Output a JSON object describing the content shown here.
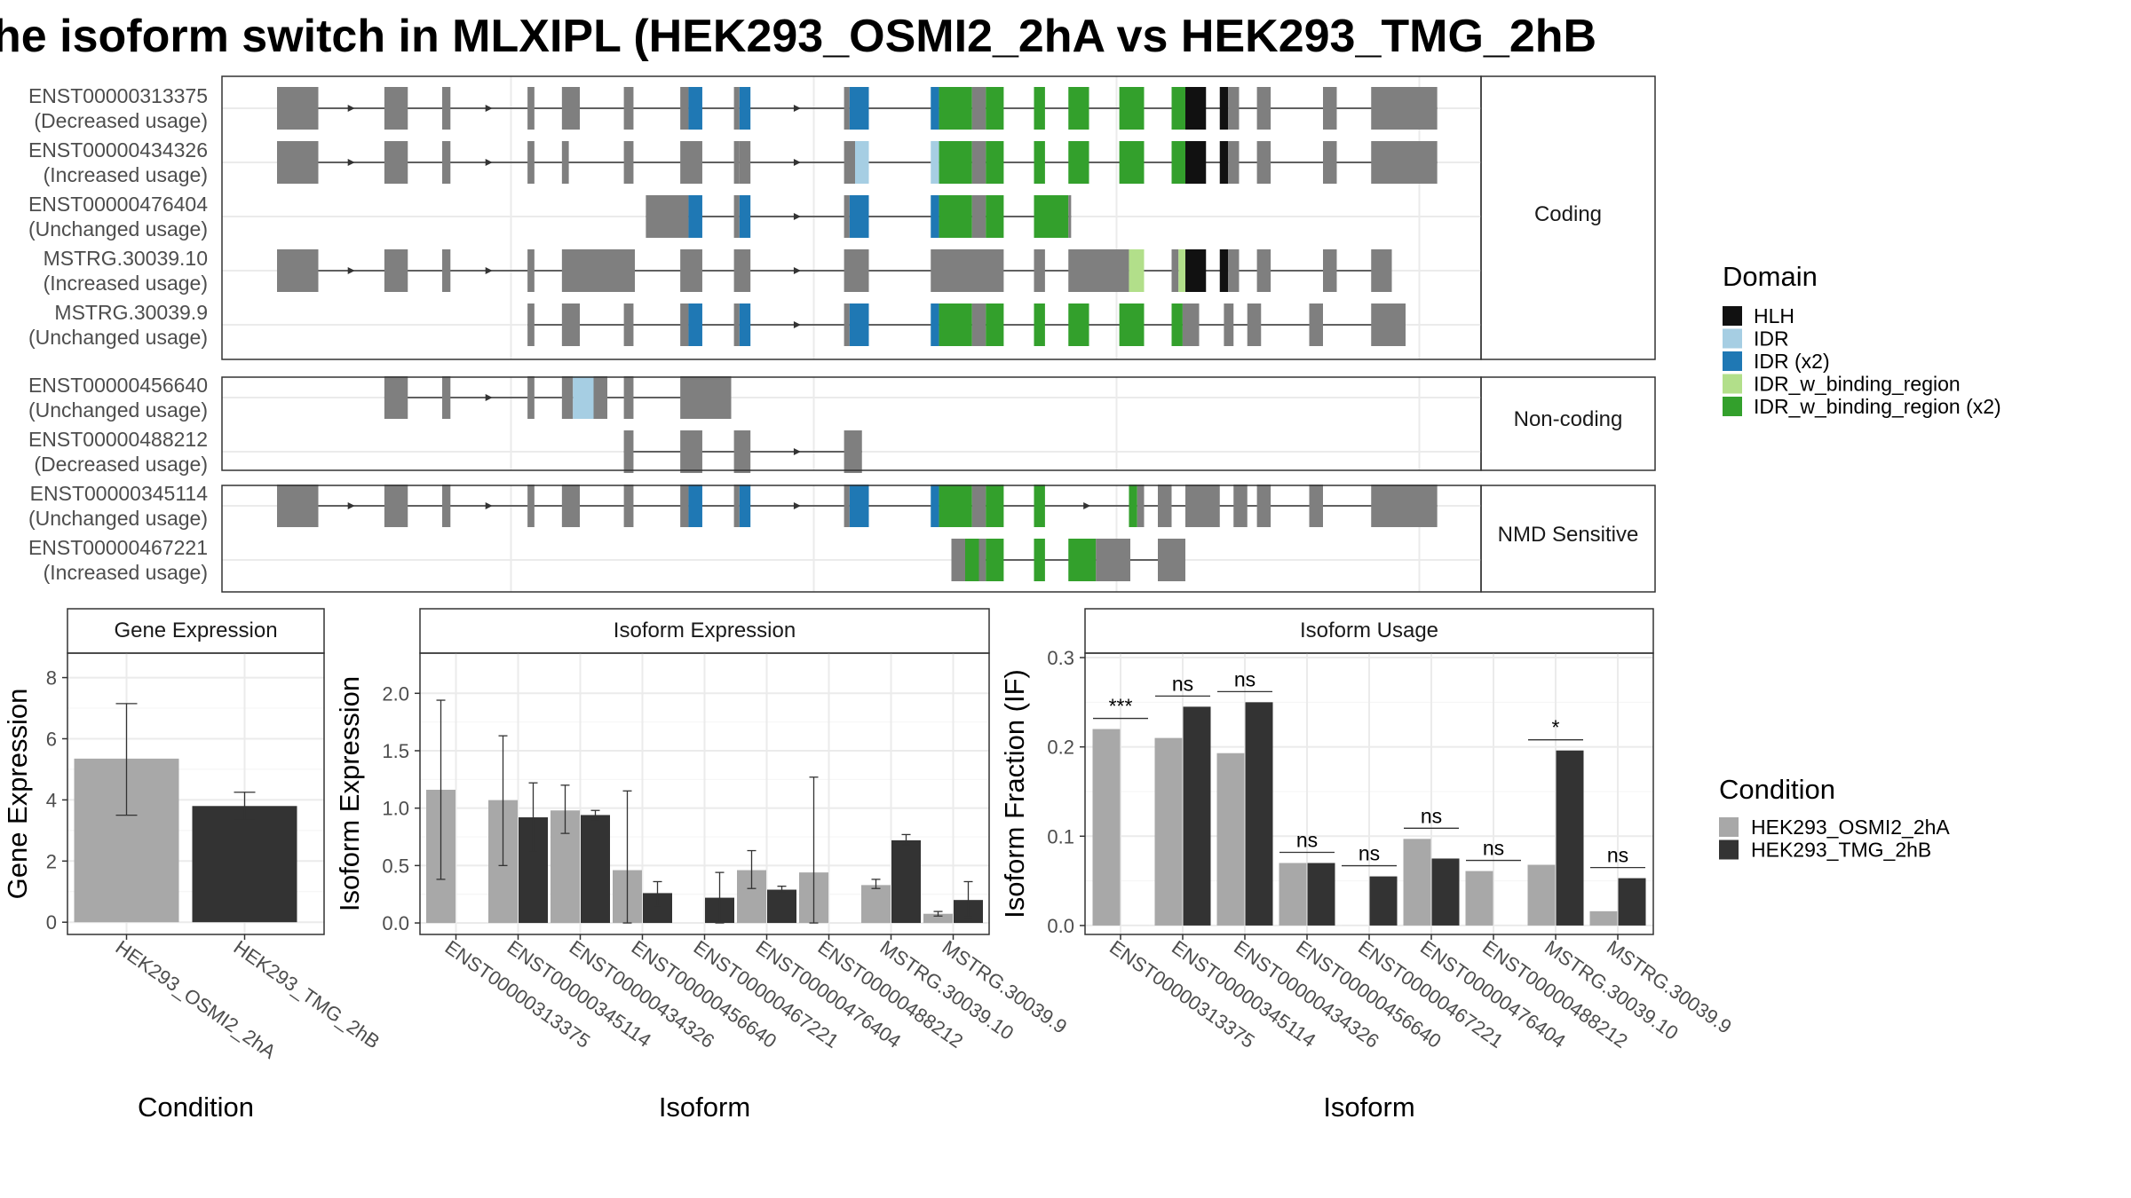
{
  "title": "he isoform switch in MLXIPL (HEK293_OSMI2_2hA vs HEK293_TMG_2hB",
  "colors": {
    "HLH": "#111111",
    "IDR": "#a6cee3",
    "IDR (x2)": "#1f78b4",
    "IDR_w_binding_region": "#b2df8a",
    "IDR_w_binding_region (x2)": "#33a02c",
    "none": "#7f7f7f",
    "condition_a": "#a8a8a8",
    "condition_b": "#333333"
  },
  "structure": {
    "facets": [
      "Coding",
      "Non-coding",
      "NMD Sensitive"
    ],
    "transcripts": [
      {
        "facet": 0,
        "id": "ENST00000313375",
        "usage": "(Decreased usage)",
        "exons": [
          [
            0.0,
            0.3,
            "n"
          ],
          [
            0.78,
            0.95,
            "n"
          ],
          [
            1.2,
            1.26,
            "n"
          ],
          [
            1.82,
            1.87,
            "n"
          ],
          [
            2.07,
            2.2,
            "n"
          ],
          [
            2.52,
            2.59,
            "n"
          ],
          [
            2.93,
            2.99,
            "n"
          ],
          [
            2.99,
            3.09,
            "b2"
          ],
          [
            3.32,
            3.36,
            "n"
          ],
          [
            3.36,
            3.44,
            "b2"
          ],
          [
            4.12,
            4.16,
            "n"
          ],
          [
            4.16,
            4.3,
            "b2"
          ],
          [
            4.75,
            4.81,
            "b2"
          ],
          [
            4.81,
            5.05,
            "g2"
          ],
          [
            5.05,
            5.15,
            "n"
          ],
          [
            5.15,
            5.28,
            "g2"
          ],
          [
            5.5,
            5.58,
            "g2"
          ],
          [
            5.75,
            5.9,
            "g2"
          ],
          [
            6.12,
            6.3,
            "g2"
          ],
          [
            6.5,
            6.6,
            "g2"
          ],
          [
            6.6,
            6.75,
            "h"
          ],
          [
            6.85,
            6.91,
            "h"
          ],
          [
            6.91,
            6.99,
            "n"
          ],
          [
            7.12,
            7.22,
            "n"
          ],
          [
            7.6,
            7.7,
            "n"
          ],
          [
            7.95,
            8.43,
            "n"
          ]
        ]
      },
      {
        "facet": 0,
        "id": "ENST00000434326",
        "usage": "(Increased usage)",
        "exons": [
          [
            0.0,
            0.3,
            "n"
          ],
          [
            0.78,
            0.95,
            "n"
          ],
          [
            1.2,
            1.26,
            "n"
          ],
          [
            1.82,
            1.87,
            "n"
          ],
          [
            2.07,
            2.12,
            "n"
          ],
          [
            2.52,
            2.59,
            "n"
          ],
          [
            2.93,
            3.09,
            "n"
          ],
          [
            3.32,
            3.36,
            "n"
          ],
          [
            3.36,
            3.44,
            "n"
          ],
          [
            4.12,
            4.2,
            "n"
          ],
          [
            4.2,
            4.3,
            "b1"
          ],
          [
            4.75,
            4.81,
            "b1"
          ],
          [
            4.81,
            5.05,
            "g2"
          ],
          [
            5.05,
            5.15,
            "n"
          ],
          [
            5.15,
            5.28,
            "g2"
          ],
          [
            5.5,
            5.58,
            "g2"
          ],
          [
            5.75,
            5.9,
            "g2"
          ],
          [
            6.12,
            6.3,
            "g2"
          ],
          [
            6.5,
            6.6,
            "g2"
          ],
          [
            6.6,
            6.75,
            "h"
          ],
          [
            6.85,
            6.91,
            "h"
          ],
          [
            6.91,
            6.99,
            "n"
          ],
          [
            7.12,
            7.22,
            "n"
          ],
          [
            7.6,
            7.7,
            "n"
          ],
          [
            7.95,
            8.43,
            "n"
          ]
        ]
      },
      {
        "facet": 0,
        "id": "ENST00000476404",
        "usage": "(Unchanged usage)",
        "exons": [
          [
            2.68,
            2.99,
            "n"
          ],
          [
            2.99,
            3.09,
            "b2"
          ],
          [
            3.32,
            3.36,
            "n"
          ],
          [
            3.36,
            3.44,
            "b2"
          ],
          [
            4.12,
            4.16,
            "n"
          ],
          [
            4.16,
            4.3,
            "b2"
          ],
          [
            4.75,
            4.81,
            "b2"
          ],
          [
            4.81,
            5.05,
            "g2"
          ],
          [
            5.05,
            5.15,
            "n"
          ],
          [
            5.15,
            5.28,
            "g2"
          ],
          [
            5.5,
            5.75,
            "g2"
          ],
          [
            5.75,
            5.77,
            "n"
          ]
        ]
      },
      {
        "facet": 0,
        "id": "MSTRG.30039.10",
        "usage": "(Increased usage)",
        "exons": [
          [
            0.0,
            0.3,
            "n"
          ],
          [
            0.78,
            0.95,
            "n"
          ],
          [
            1.2,
            1.26,
            "n"
          ],
          [
            1.82,
            1.87,
            "n"
          ],
          [
            2.07,
            2.6,
            "n"
          ],
          [
            2.93,
            3.09,
            "n"
          ],
          [
            3.32,
            3.44,
            "n"
          ],
          [
            4.12,
            4.3,
            "n"
          ],
          [
            4.75,
            5.28,
            "n"
          ],
          [
            5.5,
            5.58,
            "n"
          ],
          [
            5.75,
            6.19,
            "n"
          ],
          [
            6.19,
            6.3,
            "g1"
          ],
          [
            6.5,
            6.55,
            "n"
          ],
          [
            6.55,
            6.6,
            "g1"
          ],
          [
            6.6,
            6.75,
            "h"
          ],
          [
            6.85,
            6.91,
            "h"
          ],
          [
            6.91,
            6.99,
            "n"
          ],
          [
            7.12,
            7.22,
            "n"
          ],
          [
            7.6,
            7.7,
            "n"
          ],
          [
            7.95,
            8.1,
            "n"
          ]
        ]
      },
      {
        "facet": 0,
        "id": "MSTRG.30039.9",
        "usage": "(Unchanged usage)",
        "exons": [
          [
            1.82,
            1.87,
            "n"
          ],
          [
            2.07,
            2.2,
            "n"
          ],
          [
            2.52,
            2.59,
            "n"
          ],
          [
            2.93,
            2.99,
            "n"
          ],
          [
            2.99,
            3.09,
            "b2"
          ],
          [
            3.32,
            3.36,
            "n"
          ],
          [
            3.36,
            3.44,
            "b2"
          ],
          [
            4.12,
            4.16,
            "n"
          ],
          [
            4.16,
            4.3,
            "b2"
          ],
          [
            4.75,
            4.81,
            "b2"
          ],
          [
            4.81,
            5.05,
            "g2"
          ],
          [
            5.05,
            5.15,
            "n"
          ],
          [
            5.15,
            5.28,
            "g2"
          ],
          [
            5.5,
            5.58,
            "g2"
          ],
          [
            5.75,
            5.9,
            "g2"
          ],
          [
            6.12,
            6.3,
            "g2"
          ],
          [
            6.5,
            6.58,
            "g2"
          ],
          [
            6.58,
            6.7,
            "n"
          ],
          [
            6.88,
            6.95,
            "n"
          ],
          [
            7.05,
            7.15,
            "n"
          ],
          [
            7.5,
            7.6,
            "n"
          ],
          [
            7.95,
            8.2,
            "n"
          ]
        ]
      },
      {
        "facet": 1,
        "id": "ENST00000456640",
        "usage": "(Unchanged usage)",
        "exons": [
          [
            0.78,
            0.95,
            "n"
          ],
          [
            1.2,
            1.26,
            "n"
          ],
          [
            1.82,
            1.87,
            "n"
          ],
          [
            2.07,
            2.15,
            "n"
          ],
          [
            2.15,
            2.3,
            "i1"
          ],
          [
            2.3,
            2.4,
            "n"
          ],
          [
            2.52,
            2.59,
            "n"
          ],
          [
            2.93,
            3.3,
            "n"
          ]
        ]
      },
      {
        "facet": 1,
        "id": "ENST00000488212",
        "usage": "(Decreased usage)",
        "exons": [
          [
            2.52,
            2.59,
            "n"
          ],
          [
            2.93,
            3.09,
            "n"
          ],
          [
            3.32,
            3.44,
            "n"
          ],
          [
            4.12,
            4.25,
            "n"
          ]
        ]
      },
      {
        "facet": 2,
        "id": "ENST00000345114",
        "usage": "(Unchanged usage)",
        "exons": [
          [
            0.0,
            0.3,
            "n"
          ],
          [
            0.78,
            0.95,
            "n"
          ],
          [
            1.2,
            1.26,
            "n"
          ],
          [
            1.82,
            1.87,
            "n"
          ],
          [
            2.07,
            2.2,
            "n"
          ],
          [
            2.52,
            2.59,
            "n"
          ],
          [
            2.93,
            2.99,
            "n"
          ],
          [
            2.99,
            3.09,
            "b2"
          ],
          [
            3.32,
            3.36,
            "n"
          ],
          [
            3.36,
            3.44,
            "b2"
          ],
          [
            4.12,
            4.16,
            "n"
          ],
          [
            4.16,
            4.3,
            "b2"
          ],
          [
            4.75,
            4.81,
            "b2"
          ],
          [
            4.81,
            5.05,
            "g2"
          ],
          [
            5.05,
            5.15,
            "n"
          ],
          [
            5.15,
            5.28,
            "g2"
          ],
          [
            5.5,
            5.58,
            "g2"
          ],
          [
            6.19,
            6.25,
            "g2"
          ],
          [
            6.25,
            6.3,
            "n"
          ],
          [
            6.4,
            6.5,
            "n"
          ],
          [
            6.6,
            6.85,
            "n"
          ],
          [
            6.95,
            7.05,
            "n"
          ],
          [
            7.12,
            7.22,
            "n"
          ],
          [
            7.5,
            7.6,
            "n"
          ],
          [
            7.95,
            8.43,
            "n"
          ]
        ]
      },
      {
        "facet": 2,
        "id": "ENST00000467221",
        "usage": "(Increased usage)",
        "exons": [
          [
            4.9,
            5.0,
            "n"
          ],
          [
            5.0,
            5.1,
            "g2"
          ],
          [
            5.1,
            5.15,
            "n"
          ],
          [
            5.15,
            5.28,
            "g2"
          ],
          [
            5.5,
            5.58,
            "g2"
          ],
          [
            5.75,
            5.95,
            "g2"
          ],
          [
            5.95,
            6.2,
            "n"
          ],
          [
            6.4,
            6.6,
            "n"
          ]
        ]
      }
    ]
  },
  "legend_domain": {
    "title": "Domain",
    "items": [
      "HLH",
      "IDR",
      "IDR (x2)",
      "IDR_w_binding_region",
      "IDR_w_binding_region (x2)"
    ]
  },
  "legend_condition": {
    "title": "Condition",
    "items": [
      "HEK293_OSMI2_2hA",
      "HEK293_TMG_2hB"
    ]
  },
  "chart_data": [
    {
      "type": "bar",
      "title": "Gene Expression",
      "xlabel": "Condition",
      "ylabel": "Gene Expression",
      "categories": [
        "HEK293_OSMI2_2hA",
        "HEK293_TMG_2hB"
      ],
      "values": [
        5.35,
        3.8
      ],
      "errors": [
        [
          3.5,
          7.15
        ],
        [
          3.35,
          4.25
        ]
      ],
      "ylim": [
        -0.4,
        8.8
      ],
      "yticks": [
        "0",
        "2",
        "4",
        "6",
        "8"
      ]
    },
    {
      "type": "bar",
      "title": "Isoform Expression",
      "xlabel": "Isoform",
      "ylabel": "Isoform Expression",
      "categories": [
        "ENST00000313375",
        "ENST00000345114",
        "ENST00000434326",
        "ENST00000456640",
        "ENST00000467221",
        "ENST00000476404",
        "ENST00000488212",
        "MSTRG.30039.10",
        "MSTRG.30039.9"
      ],
      "series": [
        {
          "name": "HEK293_OSMI2_2hA",
          "values": [
            1.16,
            1.07,
            0.98,
            0.46,
            0.0,
            0.46,
            0.44,
            0.33,
            0.08
          ],
          "errors": [
            [
              0.38,
              1.94
            ],
            [
              0.5,
              1.63
            ],
            [
              0.78,
              1.2
            ],
            [
              0.0,
              1.15
            ],
            null,
            [
              0.3,
              0.63
            ],
            [
              0.0,
              1.27
            ],
            [
              0.3,
              0.38
            ],
            [
              0.06,
              0.1
            ]
          ]
        },
        {
          "name": "HEK293_TMG_2hB",
          "values": [
            0.0,
            0.92,
            0.94,
            0.26,
            0.22,
            0.29,
            0.0,
            0.72,
            0.2
          ],
          "errors": [
            null,
            [
              0.62,
              1.22
            ],
            [
              0.9,
              0.98
            ],
            [
              0.15,
              0.36
            ],
            [
              0.0,
              0.44
            ],
            [
              0.26,
              0.32
            ],
            null,
            [
              0.68,
              0.77
            ],
            [
              0.05,
              0.36
            ]
          ]
        }
      ],
      "ylim": [
        -0.1,
        2.35
      ],
      "yticks": [
        "0.0",
        "0.5",
        "1.0",
        "1.5",
        "2.0"
      ]
    },
    {
      "type": "bar",
      "title": "Isoform Usage",
      "xlabel": "Isoform",
      "ylabel": "Isoform Fraction (IF)",
      "categories": [
        "ENST00000313375",
        "ENST00000345114",
        "ENST00000434326",
        "ENST00000456640",
        "ENST00000467221",
        "ENST00000476404",
        "ENST00000488212",
        "MSTRG.30039.10",
        "MSTRG.30039.9"
      ],
      "series": [
        {
          "name": "HEK293_OSMI2_2hA",
          "values": [
            0.22,
            0.21,
            0.193,
            0.07,
            0.0,
            0.097,
            0.061,
            0.068,
            0.016
          ]
        },
        {
          "name": "HEK293_TMG_2hB",
          "values": [
            0.0,
            0.245,
            0.25,
            0.07,
            0.055,
            0.075,
            0.0,
            0.196,
            0.053
          ]
        }
      ],
      "significance": [
        "***",
        "ns",
        "ns",
        "ns",
        "ns",
        "ns",
        "ns",
        "*",
        "ns"
      ],
      "ylim": [
        -0.01,
        0.305
      ],
      "yticks": [
        "0.0",
        "0.1",
        "0.2",
        "0.3"
      ]
    }
  ]
}
